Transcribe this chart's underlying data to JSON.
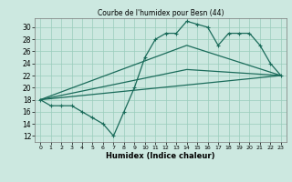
{
  "title": "Courbe de l'humidex pour Besn (44)",
  "xlabel": "Humidex (Indice chaleur)",
  "bg_color": "#cce8e0",
  "line_color": "#1a6b5a",
  "grid_color": "#99ccbb",
  "xlim": [
    -0.5,
    23.5
  ],
  "ylim": [
    11,
    31.5
  ],
  "yticks": [
    12,
    14,
    16,
    18,
    20,
    22,
    24,
    26,
    28,
    30
  ],
  "xticks": [
    0,
    1,
    2,
    3,
    4,
    5,
    6,
    7,
    8,
    9,
    10,
    11,
    12,
    13,
    14,
    15,
    16,
    17,
    18,
    19,
    20,
    21,
    22,
    23
  ],
  "line1_x": [
    0,
    1,
    2,
    3,
    4,
    5,
    6,
    7,
    8,
    9,
    10,
    11,
    12,
    13,
    14,
    15,
    16,
    17,
    18,
    19,
    20,
    21,
    22,
    23
  ],
  "line1_y": [
    18,
    17,
    17,
    17,
    16,
    15,
    14,
    12,
    16,
    20,
    25,
    28,
    29,
    29,
    31,
    30.5,
    30,
    27,
    29,
    29,
    29,
    27,
    24,
    22
  ],
  "line2_x": [
    0,
    23
  ],
  "line2_y": [
    18,
    22
  ],
  "line3_x": [
    0,
    14,
    23
  ],
  "line3_y": [
    18,
    23,
    22
  ],
  "line4_x": [
    0,
    14,
    23
  ],
  "line4_y": [
    18,
    27,
    22
  ]
}
